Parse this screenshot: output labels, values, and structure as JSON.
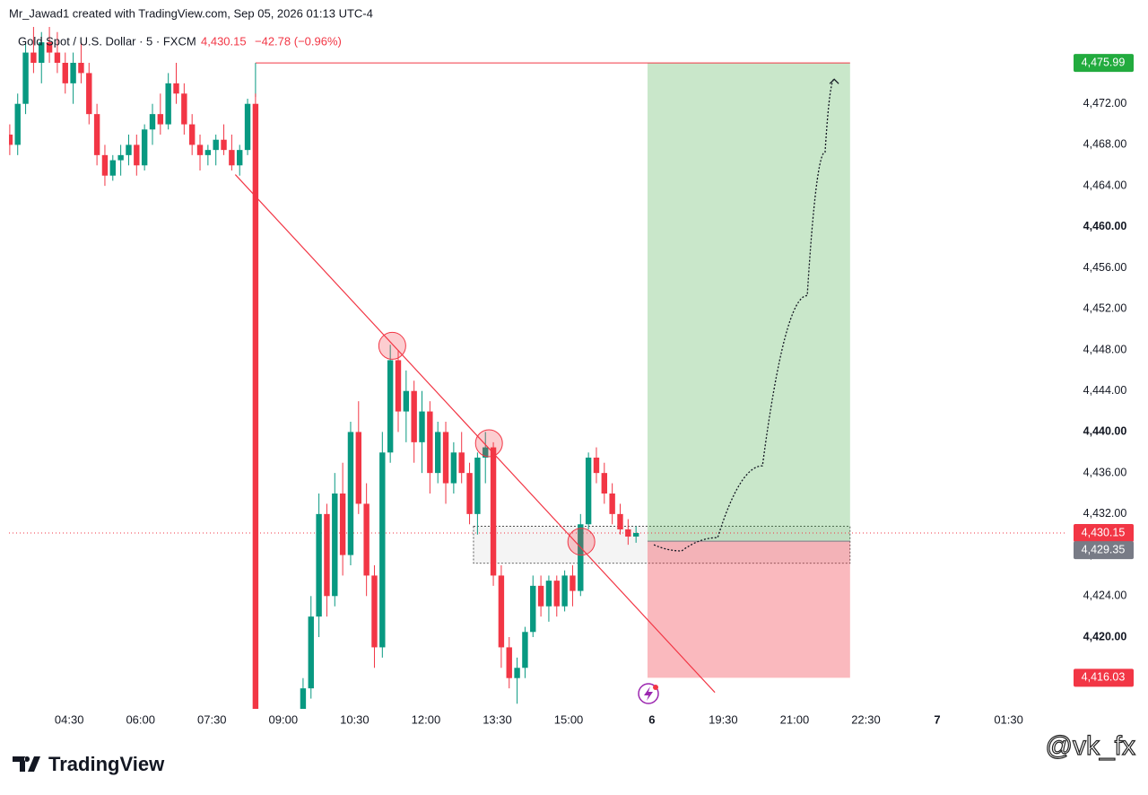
{
  "header": {
    "credit": "Mr_Jawad1 created with TradingView.com, Sep 05, 2026 01:13 UTC-4",
    "brand": "TradingView",
    "watermark": "@vk_fx"
  },
  "chart_data": {
    "type": "candlestick",
    "title": "Gold Spot / U.S. Dollar · 5 · FXCM",
    "last_price": {
      "value": 4430.15,
      "label": "4,430.15"
    },
    "change": "−42.78 (−0.96%)",
    "up_color": "#089981",
    "down_color": "#f23645",
    "xlim": [
      -15.2,
      251.8
    ],
    "ylim": [
      4413,
      4479.5
    ],
    "xticks": [
      {
        "value": 0,
        "label": "04:30"
      },
      {
        "value": 18,
        "label": "06:00"
      },
      {
        "value": 36,
        "label": "07:30"
      },
      {
        "value": 54,
        "label": "09:00"
      },
      {
        "value": 72,
        "label": "10:30"
      },
      {
        "value": 90,
        "label": "12:00"
      },
      {
        "value": 108,
        "label": "13:30"
      },
      {
        "value": 126,
        "label": "15:00"
      },
      {
        "value": 147,
        "label": "6"
      },
      {
        "value": 165,
        "label": "19:30"
      },
      {
        "value": 183,
        "label": "21:00"
      },
      {
        "value": 201,
        "label": "22:30"
      },
      {
        "value": 219,
        "label": "7"
      },
      {
        "value": 237,
        "label": "01:30"
      }
    ],
    "yticks": [
      {
        "value": 4420,
        "label": "4,420.00"
      },
      {
        "value": 4424,
        "label": "4,424.00"
      },
      {
        "value": 4428,
        "label": "4,428.00"
      },
      {
        "value": 4432,
        "label": "4,432.00"
      },
      {
        "value": 4436,
        "label": "4,436.00"
      },
      {
        "value": 4440,
        "label": "4,440.00"
      },
      {
        "value": 4444,
        "label": "4,444.00"
      },
      {
        "value": 4448,
        "label": "4,448.00"
      },
      {
        "value": 4452,
        "label": "4,452.00"
      },
      {
        "value": 4456,
        "label": "4,456.00"
      },
      {
        "value": 4460,
        "label": "4,460.00"
      },
      {
        "value": 4464,
        "label": "4,464.00"
      },
      {
        "value": 4468,
        "label": "4,468.00"
      },
      {
        "value": 4472,
        "label": "4,472.00"
      }
    ],
    "candles": [
      [
        -15,
        4469,
        4470,
        4467,
        4468
      ],
      [
        -13,
        4468,
        4473,
        4467,
        4472
      ],
      [
        -11,
        4472,
        4478,
        4471,
        4477
      ],
      [
        -9,
        4477,
        4480,
        4475,
        4476
      ],
      [
        -7,
        4476,
        4479,
        4474,
        4478
      ],
      [
        -5,
        4478,
        4480,
        4476,
        4477
      ],
      [
        -3,
        4477,
        4479,
        4475,
        4476
      ],
      [
        -1,
        4476,
        4477,
        4473,
        4474
      ],
      [
        1,
        4474,
        4477,
        4472,
        4476
      ],
      [
        3,
        4476,
        4478,
        4474,
        4475
      ],
      [
        5,
        4475,
        4476,
        4470,
        4471
      ],
      [
        7,
        4471,
        4472,
        4466,
        4467
      ],
      [
        9,
        4467,
        4468,
        4464,
        4465
      ],
      [
        11,
        4465,
        4467,
        4464.5,
        4466.5
      ],
      [
        13,
        4466.5,
        4468,
        4465,
        4467
      ],
      [
        15,
        4467,
        4469,
        4466,
        4468
      ],
      [
        17,
        4468,
        4469,
        4465,
        4466
      ],
      [
        19,
        4466,
        4470,
        4465.5,
        4469.5
      ],
      [
        21,
        4469.5,
        4472,
        4468,
        4471
      ],
      [
        23,
        4471,
        4473,
        4469,
        4470
      ],
      [
        25,
        4470,
        4475,
        4469.5,
        4474
      ],
      [
        27,
        4474,
        4476,
        4472,
        4473
      ],
      [
        29,
        4473,
        4474,
        4469,
        4470
      ],
      [
        31,
        4470,
        4471,
        4467,
        4468
      ],
      [
        33,
        4468,
        4469,
        4465.5,
        4467
      ],
      [
        35,
        4467,
        4468,
        4466,
        4467.5
      ],
      [
        37,
        4467.5,
        4469,
        4466,
        4468.5
      ],
      [
        39,
        4468.5,
        4470,
        4467,
        4467.5
      ],
      [
        41,
        4467.5,
        4469,
        4465.5,
        4466
      ],
      [
        43,
        4466,
        4468,
        4465,
        4467.5
      ],
      [
        45,
        4467.5,
        4472.5,
        4467,
        4472
      ],
      [
        47,
        4472,
        4473,
        4405,
        4407
      ],
      [
        59,
        4412,
        4416,
        4411,
        4415
      ],
      [
        61,
        4415,
        4424,
        4414,
        4422
      ],
      [
        63,
        4422,
        4434,
        4420,
        4432
      ],
      [
        65,
        4432,
        4433,
        4422,
        4424
      ],
      [
        67,
        4424,
        4436,
        4423,
        4434
      ],
      [
        69,
        4434,
        4437,
        4426,
        4428
      ],
      [
        71,
        4428,
        4441,
        4427,
        4440
      ],
      [
        73,
        4440,
        4443,
        4432,
        4433
      ],
      [
        75,
        4433,
        4435,
        4424,
        4426
      ],
      [
        77,
        4426,
        4427,
        4417,
        4419
      ],
      [
        79,
        4419,
        4440,
        4418,
        4438
      ],
      [
        81,
        4438,
        4448.5,
        4437,
        4447
      ],
      [
        83,
        4447,
        4448,
        4440,
        4442
      ],
      [
        85,
        4442,
        4446,
        4439,
        4444
      ],
      [
        87,
        4444,
        4445,
        4437,
        4439
      ],
      [
        89,
        4439,
        4444,
        4436,
        4442
      ],
      [
        91,
        4442,
        4443,
        4434,
        4436
      ],
      [
        93,
        4436,
        4441,
        4435,
        4440
      ],
      [
        95,
        4440,
        4441,
        4433,
        4435
      ],
      [
        97,
        4435,
        4439,
        4434,
        4438
      ],
      [
        99,
        4438,
        4440,
        4435,
        4436
      ],
      [
        101,
        4436,
        4437,
        4431,
        4432
      ],
      [
        103,
        4432,
        4438,
        4430,
        4437.5
      ],
      [
        105,
        4437.5,
        4440,
        4435,
        4438.5
      ],
      [
        107,
        4438.5,
        4439,
        4425,
        4426
      ],
      [
        109,
        4426,
        4427,
        4417,
        4419
      ],
      [
        111,
        4419,
        4420,
        4415,
        4416
      ],
      [
        113,
        4416,
        4418,
        4413.5,
        4417
      ],
      [
        115,
        4417,
        4421,
        4416,
        4420.5
      ],
      [
        117,
        4420.5,
        4426,
        4420,
        4425
      ],
      [
        119,
        4425,
        4426,
        4422,
        4423
      ],
      [
        121,
        4423,
        4426,
        4421.5,
        4425.5
      ],
      [
        123,
        4425.5,
        4426,
        4422,
        4423
      ],
      [
        125,
        4423,
        4426.5,
        4422.5,
        4426
      ],
      [
        127,
        4426,
        4427,
        4423,
        4424.5
      ],
      [
        129,
        4424.5,
        4432,
        4424,
        4431
      ],
      [
        131,
        4431,
        4438,
        4430.5,
        4437.5
      ],
      [
        133,
        4437.5,
        4438.5,
        4435,
        4436
      ],
      [
        135,
        4436,
        4437,
        4433,
        4434
      ],
      [
        137,
        4434,
        4435,
        4431,
        4432
      ],
      [
        139,
        4432,
        4433,
        4430,
        4430.5
      ],
      [
        141,
        4430.5,
        4431.5,
        4429,
        4429.8
      ],
      [
        143,
        4429.8,
        4430.8,
        4429.2,
        4430.15
      ]
    ],
    "trendline": {
      "x": [
        41.9,
        162.9
      ],
      "y": [
        4465.1,
        4414.6
      ]
    },
    "touch_points": {
      "x": [
        81.5,
        105.9,
        129.2
      ],
      "y": [
        4448.4,
        4438.9,
        4429.3
      ]
    },
    "zone": {
      "x": [
        102,
        197
      ],
      "y": [
        4427.2,
        4430.8
      ]
    },
    "position": {
      "x": [
        145.9,
        197
      ],
      "target_line_start": 47,
      "entry": {
        "value": 4429.35,
        "label": "4,429.35"
      },
      "target": {
        "value": 4475.99,
        "label": "4,475.99"
      },
      "stop": {
        "value": 4416.03,
        "label": "4,416.03"
      }
    },
    "projection": {
      "x": [
        147.5,
        154.5,
        163.6,
        174.9,
        186.2,
        190.7,
        193
      ],
      "y": [
        4429.0,
        4428.4,
        4429.7,
        4436.7,
        4453.3,
        4467.3,
        4474.4
      ]
    }
  }
}
